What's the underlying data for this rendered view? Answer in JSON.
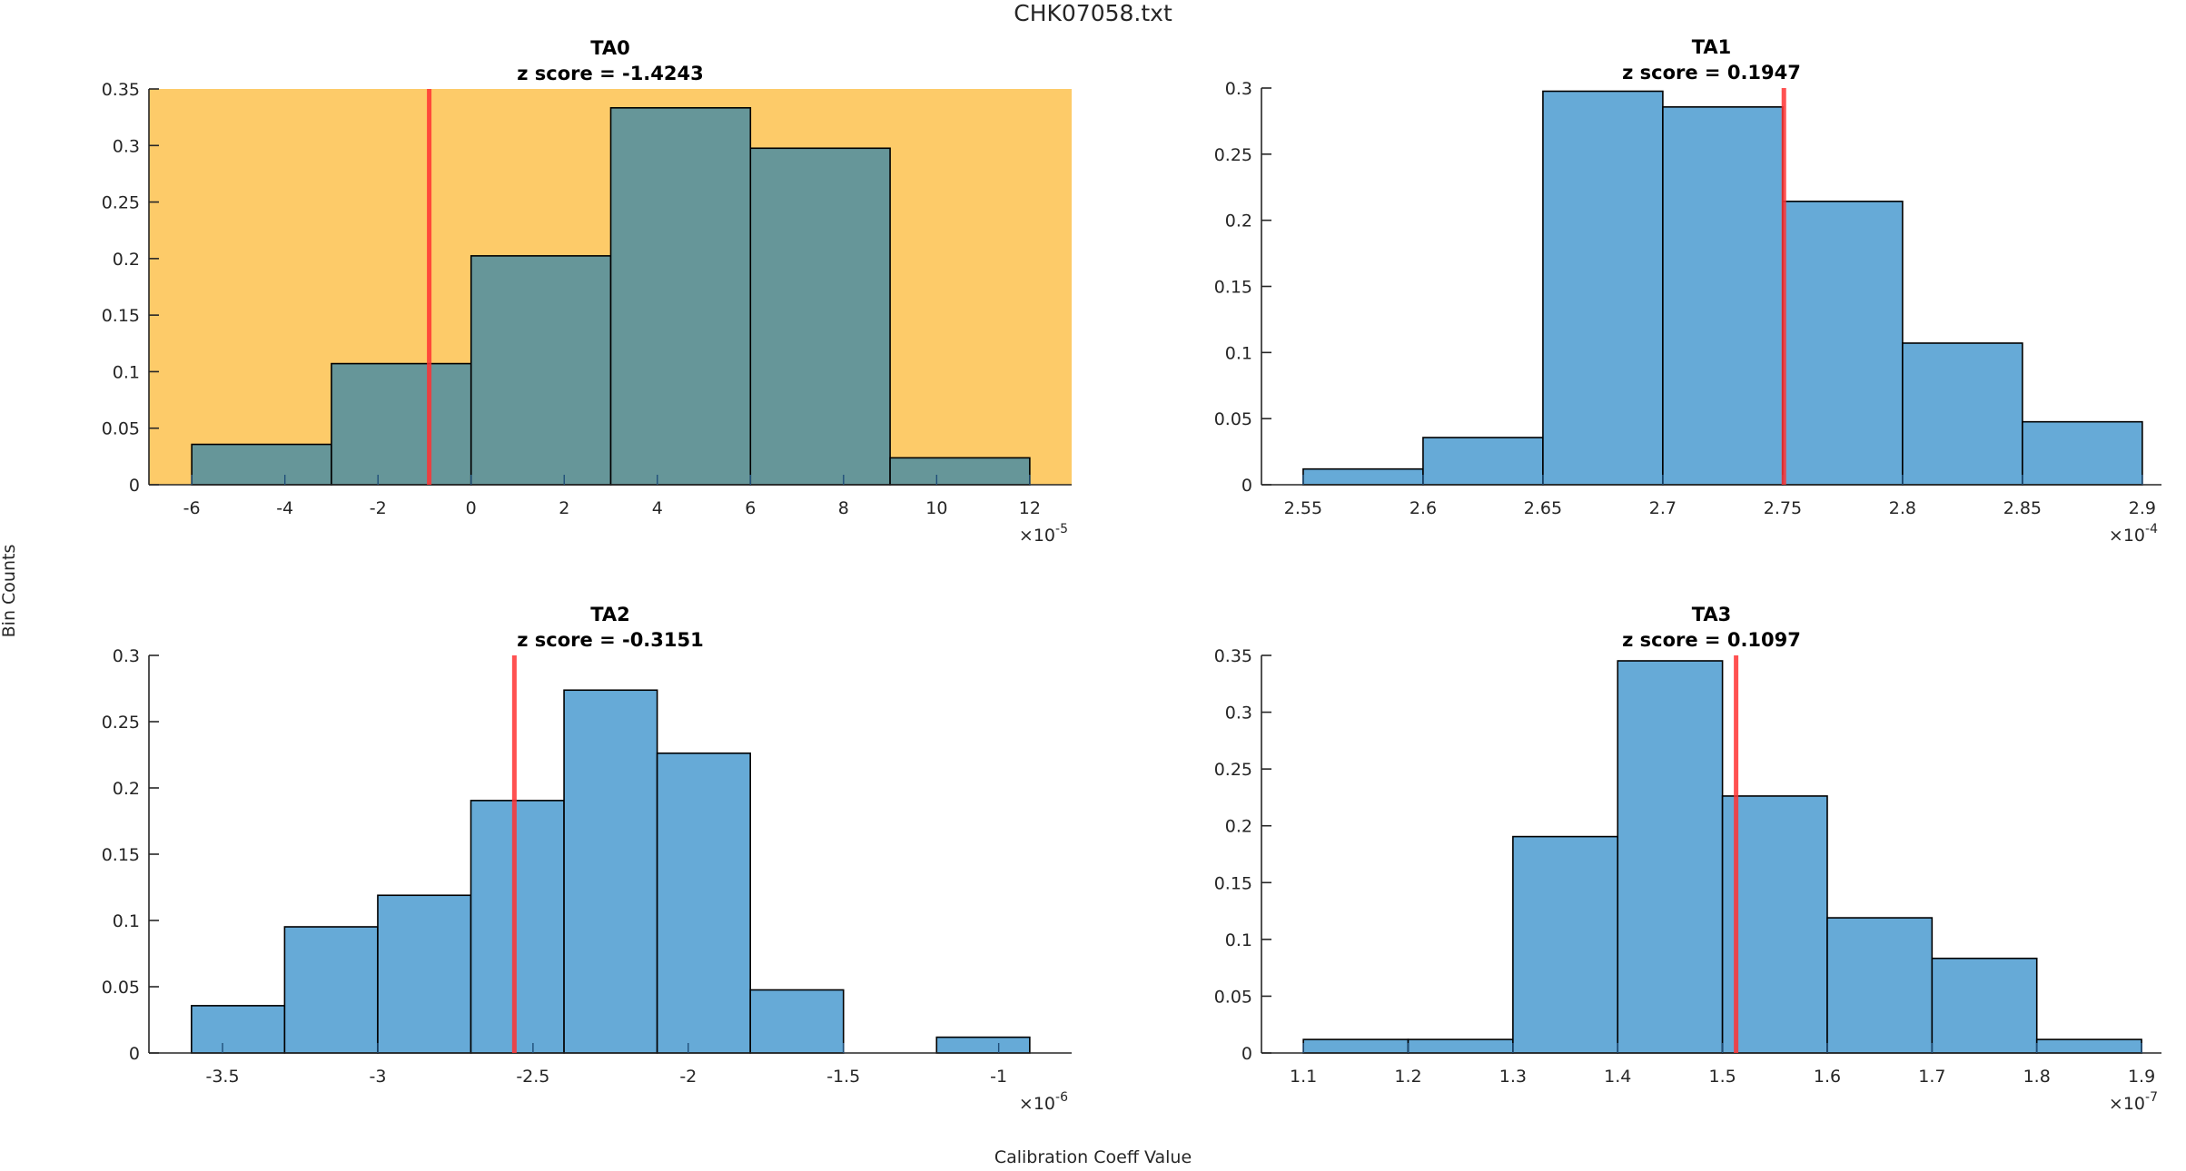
{
  "figure": {
    "title": "CHK07058.txt",
    "ylabel": "Bin Counts",
    "xlabel": "Calibration Coeff Value",
    "colors": {
      "bar": "#66AAD7",
      "bar_highlight": "#669699",
      "highlight_bg": "#FDCB69",
      "marker_line": "#FF3333",
      "bar_edge": "#000000"
    }
  },
  "chart_data": [
    {
      "type": "bar",
      "subtype": "histogram",
      "title": "TA0",
      "subtitle": "z score = -1.4243",
      "highlighted": true,
      "xlabel": "",
      "ylabel": "",
      "x_multiplier_label": "×10",
      "x_exponent": "-5",
      "bin_edges": [
        -6,
        -3,
        0,
        3,
        6,
        9,
        12
      ],
      "values": [
        0.0357,
        0.1071,
        0.2024,
        0.3333,
        0.2976,
        0.0238
      ],
      "marker_x": -0.9,
      "xlim": [
        -6.92,
        12.9
      ],
      "ylim": [
        0,
        0.35
      ],
      "xticks": [
        -6,
        -4,
        -2,
        0,
        2,
        4,
        6,
        8,
        10,
        12
      ],
      "xtick_labels": [
        "-6",
        "-4",
        "-2",
        "0",
        "2",
        "4",
        "6",
        "8",
        "10",
        "12"
      ],
      "yticks": [
        0,
        0.05,
        0.1,
        0.15,
        0.2,
        0.25,
        0.3,
        0.35
      ],
      "ytick_labels": [
        "0",
        "0.05",
        "0.1",
        "0.15",
        "0.2",
        "0.25",
        "0.3",
        "0.35"
      ]
    },
    {
      "type": "bar",
      "subtype": "histogram",
      "title": "TA1",
      "subtitle": "z score = 0.1947",
      "highlighted": false,
      "xlabel": "",
      "ylabel": "",
      "x_multiplier_label": "×10",
      "x_exponent": "-4",
      "bin_edges": [
        2.55,
        2.6,
        2.65,
        2.7,
        2.75,
        2.8,
        2.85,
        2.9
      ],
      "values": [
        0.0119,
        0.0357,
        0.2976,
        0.2857,
        0.2143,
        0.1071,
        0.0476
      ],
      "marker_x": 2.7505,
      "xlim": [
        2.5326,
        2.908
      ],
      "ylim": [
        0,
        0.3
      ],
      "xticks": [
        2.55,
        2.6,
        2.65,
        2.7,
        2.75,
        2.8,
        2.85,
        2.9
      ],
      "xtick_labels": [
        "2.55",
        "2.6",
        "2.65",
        "2.7",
        "2.75",
        "2.8",
        "2.85",
        "2.9"
      ],
      "yticks": [
        0,
        0.05,
        0.1,
        0.15,
        0.2,
        0.25,
        0.3
      ],
      "ytick_labels": [
        "0",
        "0.05",
        "0.1",
        "0.15",
        "0.2",
        "0.25",
        "0.3"
      ]
    },
    {
      "type": "bar",
      "subtype": "histogram",
      "title": "TA2",
      "subtitle": "z score = -0.3151",
      "highlighted": false,
      "xlabel": "",
      "ylabel": "",
      "x_multiplier_label": "×10",
      "x_exponent": "-6",
      "bin_edges": [
        -3.6,
        -3.3,
        -3.0,
        -2.7,
        -2.4,
        -2.1,
        -1.8,
        -1.5,
        -1.2,
        -0.9
      ],
      "values": [
        0.0357,
        0.0952,
        0.119,
        0.1905,
        0.2738,
        0.2262,
        0.0476,
        0,
        0.0119
      ],
      "marker_x": -2.56,
      "xlim": [
        -3.737,
        -0.765
      ],
      "ylim": [
        0,
        0.3
      ],
      "xticks": [
        -3.5,
        -3,
        -2.5,
        -2,
        -1.5,
        -1
      ],
      "xtick_labels": [
        "-3.5",
        "-3",
        "-2.5",
        "-2",
        "-1.5",
        "-1"
      ],
      "yticks": [
        0,
        0.05,
        0.1,
        0.15,
        0.2,
        0.25,
        0.3
      ],
      "ytick_labels": [
        "0",
        "0.05",
        "0.1",
        "0.15",
        "0.2",
        "0.25",
        "0.3"
      ]
    },
    {
      "type": "bar",
      "subtype": "histogram",
      "title": "TA3",
      "subtitle": "z score = 0.1097",
      "highlighted": false,
      "xlabel": "",
      "ylabel": "",
      "x_multiplier_label": "×10",
      "x_exponent": "-7",
      "bin_edges": [
        1.1,
        1.2,
        1.3,
        1.4,
        1.5,
        1.6,
        1.7,
        1.8,
        1.9
      ],
      "values": [
        0.0119,
        0.0119,
        0.1905,
        0.3452,
        0.2262,
        0.119,
        0.0833,
        0.0119
      ],
      "marker_x": 1.513,
      "xlim": [
        1.06,
        1.919
      ],
      "ylim": [
        0,
        0.35
      ],
      "xticks": [
        1.1,
        1.2,
        1.3,
        1.4,
        1.5,
        1.6,
        1.7,
        1.8,
        1.9
      ],
      "xtick_labels": [
        "1.1",
        "1.2",
        "1.3",
        "1.4",
        "1.5",
        "1.6",
        "1.7",
        "1.8",
        "1.9"
      ],
      "yticks": [
        0,
        0.05,
        0.1,
        0.15,
        0.2,
        0.25,
        0.3,
        0.35
      ],
      "ytick_labels": [
        "0",
        "0.05",
        "0.1",
        "0.15",
        "0.2",
        "0.25",
        "0.3",
        "0.35"
      ]
    }
  ]
}
